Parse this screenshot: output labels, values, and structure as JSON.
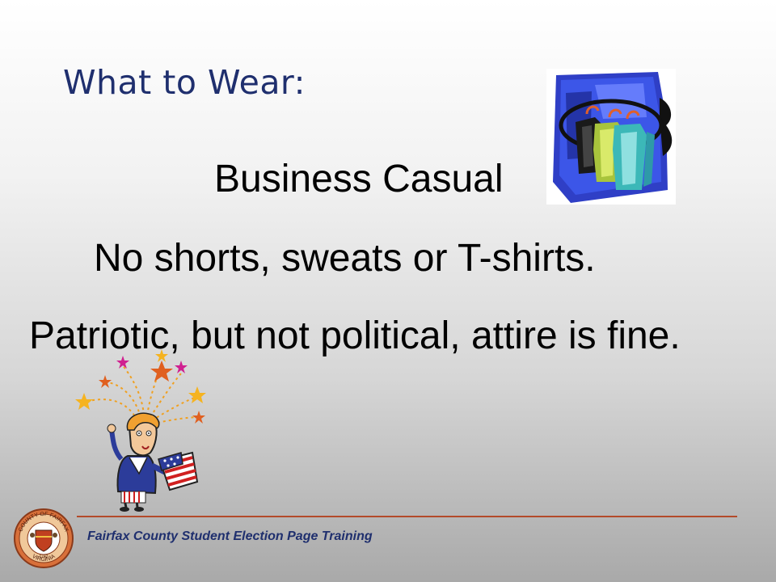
{
  "slide": {
    "title": "What to Wear:",
    "lines": [
      "Business Casual",
      "No shorts, sweats or T-shirts.",
      "Patriotic, but not political, attire is fine."
    ],
    "footer": "Fairfax County Student Election Page Training"
  },
  "seal": {
    "top_text": "COUNTY OF FAIRFAX",
    "bottom_text": "VIRGINIA",
    "year": "1742"
  },
  "colors": {
    "title": "#1f2f6e",
    "rule": "#b34a2a",
    "footer": "#1f2f6e"
  },
  "images": {
    "clothes": "clothes-rack-clipart",
    "uncle": "uncle-sam-fireworks-clipart",
    "seal": "county-seal"
  }
}
